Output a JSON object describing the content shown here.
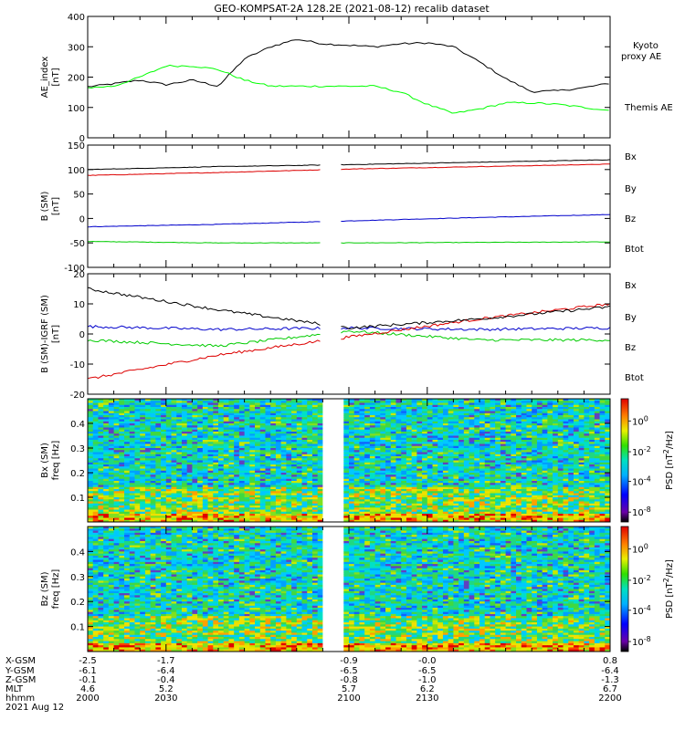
{
  "title": "GEO-KOMPSAT-2A 128.2E (2021-08-12) recalib dataset",
  "x_range": [
    2000,
    2200
  ],
  "panels": [
    {
      "id": "ae",
      "ylabel": [
        "AE_index",
        "[nT]"
      ],
      "ylim": [
        0,
        400
      ],
      "yticks": [
        "0",
        "100",
        "200",
        "300",
        "400"
      ],
      "legend": [
        {
          "label": "Kyoto",
          "color": "#00ff00"
        },
        {
          "label": "proxy AE",
          "color": "#00ff00"
        },
        {
          "label": "Themis AE",
          "color": "#000000"
        }
      ]
    },
    {
      "id": "bsm",
      "ylabel": [
        "B (SM)",
        "[nT]"
      ],
      "ylim": [
        -100,
        150
      ],
      "yticks": [
        "-100",
        "-50",
        "0",
        "50",
        "100",
        "150"
      ],
      "legend": [
        {
          "label": "Bx",
          "color": "#0000cc"
        },
        {
          "label": "By",
          "color": "#00cc00"
        },
        {
          "label": "Bz",
          "color": "#dd0000"
        },
        {
          "label": "Btot",
          "color": "#000000"
        }
      ]
    },
    {
      "id": "bdiff",
      "ylabel": [
        "B (SM)-IGRF (SM)",
        "[nT]"
      ],
      "ylim": [
        -20,
        20
      ],
      "yticks": [
        "-20",
        "-10",
        "0",
        "10",
        "20"
      ],
      "legend": [
        {
          "label": "Bx",
          "color": "#0000cc"
        },
        {
          "label": "By",
          "color": "#00cc00"
        },
        {
          "label": "Bz",
          "color": "#dd0000"
        },
        {
          "label": "Btot",
          "color": "#000000"
        }
      ]
    },
    {
      "id": "specbx",
      "ylabel": [
        "Bx (SM)",
        "freq [Hz]"
      ],
      "ylim": [
        0,
        0.5
      ],
      "yticks": [
        "0.1",
        "0.2",
        "0.3",
        "0.4"
      ],
      "colorbar_label": "PSD [nT^2/Hz]",
      "colorbar_ticks": [
        "10^0",
        "10^-2",
        "10^-4",
        "10^-8"
      ]
    },
    {
      "id": "specbz",
      "ylabel": [
        "Bz (SM)",
        "freq [Hz]"
      ],
      "ylim": [
        0,
        0.5
      ],
      "yticks": [
        "0.1",
        "0.2",
        "0.3",
        "0.4"
      ],
      "colorbar_label": "PSD [nT^2/Hz]",
      "colorbar_ticks": [
        "10^0",
        "10^-2",
        "10^-4",
        "10^-8"
      ]
    }
  ],
  "axis_table": {
    "row_labels": [
      "X-GSM",
      "Y-GSM",
      "Z-GSM",
      "MLT",
      "hhmm",
      "2021 Aug 12"
    ],
    "columns": [
      [
        "-2.5",
        "-6.1",
        "-0.1",
        "4.6",
        "2000"
      ],
      [
        "-1.7",
        "-6.4",
        "-0.4",
        "5.2",
        "2030"
      ],
      [
        "-0.9",
        "-6.5",
        "-0.8",
        "5.7",
        "2100"
      ],
      [
        "-0.0",
        "-6.5",
        "-1.0",
        "6.2",
        "2130"
      ],
      [
        "0.8",
        "-6.4",
        "-1.3",
        "6.7",
        "2200"
      ]
    ]
  },
  "chart_data": [
    {
      "type": "line",
      "title": "GEO-KOMPSAT-2A 128.2E (2021-08-12) recalib dataset",
      "ylabel": "AE_index [nT]",
      "ylim": [
        0,
        400
      ],
      "grid": false,
      "legend_position": "right",
      "series": [
        {
          "name": "Themis AE",
          "color": "#000000",
          "x": [
            2000,
            2010,
            2020,
            2030,
            2040,
            2050,
            2060,
            2070,
            2080,
            2090,
            2100,
            2110,
            2120,
            2130,
            2140,
            2150,
            2160,
            2170,
            2180,
            2190,
            2200
          ],
          "y": [
            168,
            178,
            190,
            175,
            190,
            170,
            260,
            300,
            325,
            310,
            305,
            300,
            310,
            313,
            300,
            250,
            195,
            152,
            155,
            165,
            180
          ]
        },
        {
          "name": "Kyoto proxy AE",
          "color": "#00ff00",
          "x": [
            2000,
            2010,
            2020,
            2030,
            2040,
            2050,
            2060,
            2070,
            2080,
            2090,
            2100,
            2110,
            2120,
            2130,
            2140,
            2150,
            2160,
            2170,
            2180,
            2190,
            2200
          ],
          "y": [
            165,
            170,
            200,
            237,
            237,
            225,
            190,
            170,
            170,
            170,
            170,
            170,
            150,
            110,
            80,
            95,
            115,
            115,
            110,
            100,
            90
          ]
        }
      ]
    },
    {
      "type": "line",
      "ylabel": "B (SM) [nT]",
      "ylim": [
        -100,
        150
      ],
      "grid": false,
      "legend_position": "right",
      "series": [
        {
          "name": "Bx",
          "color": "#0000cc",
          "x": [
            2000,
            2050,
            2100,
            2150,
            2200
          ],
          "y": [
            -17,
            -12,
            -5,
            2,
            8
          ]
        },
        {
          "name": "By",
          "color": "#00cc00",
          "x": [
            2000,
            2050,
            2100,
            2150,
            2200
          ],
          "y": [
            -47,
            -50,
            -50,
            -49,
            -48
          ]
        },
        {
          "name": "Bz",
          "color": "#dd0000",
          "x": [
            2000,
            2050,
            2100,
            2150,
            2200
          ],
          "y": [
            88,
            94,
            101,
            106,
            111
          ]
        },
        {
          "name": "Btot",
          "color": "#000000",
          "x": [
            2000,
            2050,
            2100,
            2150,
            2200
          ],
          "y": [
            100,
            106,
            110,
            115,
            120
          ]
        }
      ]
    },
    {
      "type": "line",
      "ylabel": "B (SM)-IGRF (SM) [nT]",
      "ylim": [
        -20,
        20
      ],
      "grid": false,
      "legend_position": "right",
      "series": [
        {
          "name": "Bx",
          "color": "#0000cc",
          "x": [
            2000,
            2050,
            2100,
            2150,
            2200
          ],
          "y": [
            2.5,
            1.5,
            2,
            1.5,
            2
          ]
        },
        {
          "name": "By",
          "color": "#00cc00",
          "x": [
            2000,
            2050,
            2100,
            2150,
            2200
          ],
          "y": [
            -2,
            -4,
            1,
            -2,
            -2
          ]
        },
        {
          "name": "Bz",
          "color": "#dd0000",
          "x": [
            2000,
            2050,
            2100,
            2150,
            2200
          ],
          "y": [
            -15,
            -7,
            -1,
            5,
            10
          ]
        },
        {
          "name": "Btot",
          "color": "#000000",
          "x": [
            2000,
            2050,
            2100,
            2150,
            2200
          ],
          "y": [
            15,
            8,
            2,
            5,
            9
          ]
        }
      ]
    },
    {
      "type": "heatmap",
      "ylabel": "Bx (SM) freq [Hz]",
      "ylim": [
        0,
        0.5
      ],
      "xlim": [
        2000,
        2200
      ],
      "data_gap": [
        2090,
        2097
      ],
      "colorbar_label": "PSD [nT^2/Hz]"
    },
    {
      "type": "heatmap",
      "ylabel": "Bz (SM) freq [Hz]",
      "ylim": [
        0,
        0.5
      ],
      "xlim": [
        2000,
        2200
      ],
      "data_gap": [
        2090,
        2097
      ],
      "colorbar_label": "PSD [nT^2/Hz]"
    }
  ]
}
